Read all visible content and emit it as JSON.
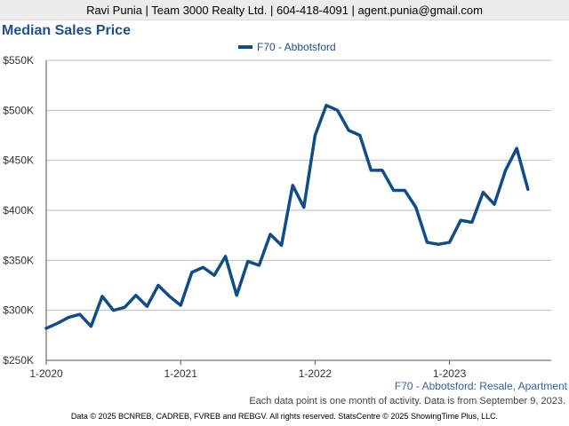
{
  "header": {
    "contact": "Ravi Punia | Team 3000 Realty Ltd. | 604-418-4091 | agent.punia@gmail.com"
  },
  "chart_data": {
    "type": "line",
    "title": "Median Sales Price",
    "xlabel": "",
    "ylabel": "",
    "x_tick_labels": [
      "1-2020",
      "1-2021",
      "1-2022",
      "1-2023"
    ],
    "y_tick_labels": [
      "$250K",
      "$300K",
      "$350K",
      "$400K",
      "$450K",
      "$500K",
      "$550K"
    ],
    "ylim": [
      250000,
      550000
    ],
    "grid": true,
    "legend_position": "top-center",
    "x": [
      "2020-01",
      "2020-02",
      "2020-03",
      "2020-04",
      "2020-05",
      "2020-06",
      "2020-07",
      "2020-08",
      "2020-09",
      "2020-10",
      "2020-11",
      "2020-12",
      "2021-01",
      "2021-02",
      "2021-03",
      "2021-04",
      "2021-05",
      "2021-06",
      "2021-07",
      "2021-08",
      "2021-09",
      "2021-10",
      "2021-11",
      "2021-12",
      "2022-01",
      "2022-02",
      "2022-03",
      "2022-04",
      "2022-05",
      "2022-06",
      "2022-07",
      "2022-08",
      "2022-09",
      "2022-10",
      "2022-11",
      "2022-12",
      "2023-01",
      "2023-02",
      "2023-03",
      "2023-04",
      "2023-05",
      "2023-06",
      "2023-07",
      "2023-08"
    ],
    "series": [
      {
        "name": "F70 - Abbotsford",
        "color": "#0f4c8a",
        "values": [
          282000,
          287000,
          293000,
          296000,
          284000,
          314000,
          300000,
          303000,
          315000,
          304000,
          325000,
          314000,
          305000,
          338000,
          343000,
          335000,
          354000,
          315000,
          349000,
          345000,
          376000,
          365000,
          425000,
          403000,
          475000,
          505000,
          500000,
          480000,
          475000,
          440000,
          440000,
          420000,
          420000,
          403000,
          368000,
          366000,
          368000,
          390000,
          388000,
          418000,
          406000,
          440000,
          462000,
          421000
        ]
      }
    ]
  },
  "footer": {
    "series_caption": "F70 - Abbotsford: Resale, Apartment",
    "note": "Each data point is one month of activity. Data is from September 9, 2023.",
    "copyright": "Data © 2025 BCNREB, CADREB, FVREB and REBGV. All rights reserved. StatsCentre © 2025 ShowingTime Plus, LLC."
  }
}
